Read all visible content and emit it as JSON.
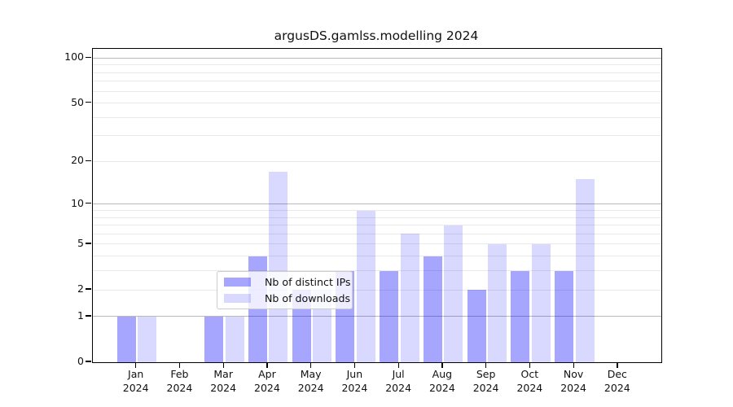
{
  "title": "argusDS.gamlss.modelling 2024",
  "chart_data": {
    "type": "bar",
    "title": "argusDS.gamlss.modelling 2024",
    "categories": [
      "Jan",
      "Feb",
      "Mar",
      "Apr",
      "May",
      "Jun",
      "Jul",
      "Aug",
      "Sep",
      "Oct",
      "Nov",
      "Dec"
    ],
    "x_year_label": "2024",
    "series": [
      {
        "name": "Nb of distinct IPs",
        "color": "rgba(0,0,255,0.35)",
        "color_hex_on_white": "#a9a9f4",
        "values": [
          1,
          0,
          1,
          4,
          2,
          3,
          3,
          4,
          2,
          3,
          3,
          0
        ]
      },
      {
        "name": "Nb of downloads",
        "color": "rgba(0,0,255,0.15)",
        "color_hex_on_white": "#dbdbf9",
        "values": [
          1,
          0,
          1,
          17,
          2,
          9,
          6,
          7,
          5,
          5,
          15,
          0
        ]
      }
    ],
    "yscale": "log1p",
    "yticks": [
      0,
      1,
      2,
      5,
      10,
      20,
      50,
      100
    ],
    "ylim": [
      0,
      115
    ],
    "grid": true,
    "major_grid_values": [
      1,
      10,
      100
    ],
    "minor_grid_values": [
      2,
      3,
      4,
      5,
      6,
      7,
      8,
      9,
      20,
      30,
      40,
      50,
      60,
      70,
      80,
      90
    ],
    "legend_position": "lower center"
  }
}
